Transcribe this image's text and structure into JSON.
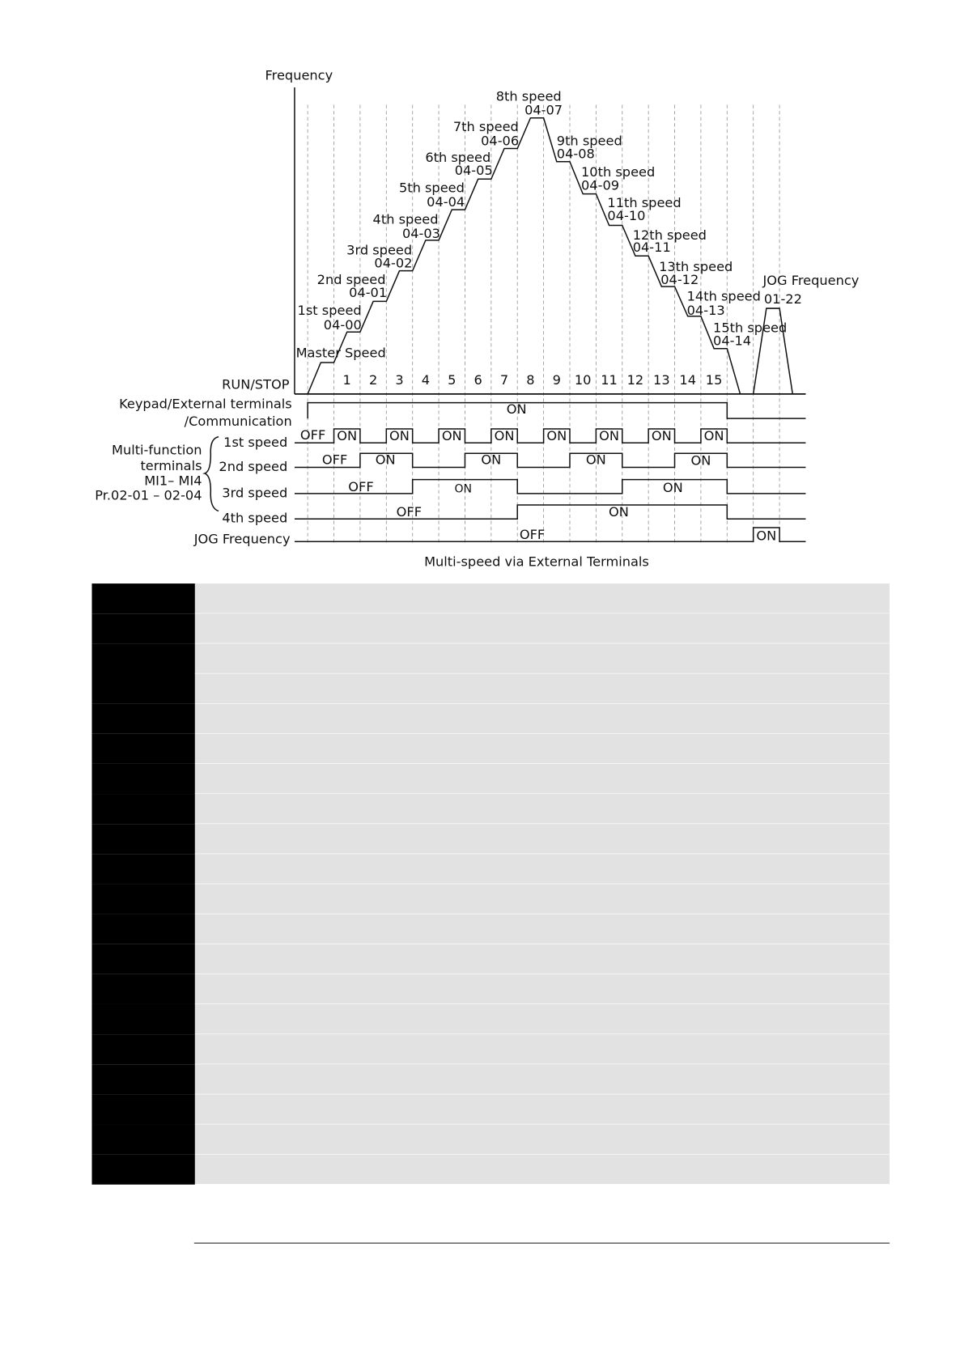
{
  "diagram": {
    "y_axis_label": "Frequency",
    "master_speed": "Master Speed",
    "speeds": [
      {
        "label": "1st speed",
        "param": "04-00"
      },
      {
        "label": "2nd speed",
        "param": "04-01"
      },
      {
        "label": "3rd speed",
        "param": "04-02"
      },
      {
        "label": "4th speed",
        "param": "04-03"
      },
      {
        "label": "5th speed",
        "param": "04-04"
      },
      {
        "label": "6th speed",
        "param": "04-05"
      },
      {
        "label": "7th speed",
        "param": "04-06"
      },
      {
        "label": "8th speed",
        "param": "04-07"
      },
      {
        "label": "9th speed",
        "param": "04-08"
      },
      {
        "label": "10th speed",
        "param": "04-09"
      },
      {
        "label": "11th speed",
        "param": "04-10"
      },
      {
        "label": "12th speed",
        "param": "04-11"
      },
      {
        "label": "13th speed",
        "param": "04-12"
      },
      {
        "label": "14th speed",
        "param": "04-13"
      },
      {
        "label": "15th speed",
        "param": "04-14"
      }
    ],
    "jog": {
      "label": "JOG Frequency",
      "param": "01-22"
    },
    "steps": [
      "1",
      "2",
      "3",
      "4",
      "5",
      "6",
      "7",
      "8",
      "9",
      "10",
      "11",
      "12",
      "13",
      "14",
      "15"
    ],
    "run_stop": "RUN/STOP",
    "keypad": {
      "label": "Keypad/External terminals",
      "label2": "/Communication",
      "state": "ON"
    },
    "multi_function": [
      "Multi-function",
      "terminals",
      "MI1– MI4",
      "Pr.02-01 – 02-04"
    ],
    "terminal_rows": [
      {
        "label": "1st speed",
        "states": [
          "OFF",
          "ON",
          "ON",
          "ON",
          "ON",
          "ON",
          "ON",
          "ON",
          "ON"
        ]
      },
      {
        "label": "2nd speed",
        "states": [
          "OFF",
          "ON",
          "ON",
          "ON",
          "ON"
        ]
      },
      {
        "label": "3rd speed",
        "states": [
          "OFF",
          "ON",
          "ON"
        ]
      },
      {
        "label": "4th speed",
        "states": [
          "OFF",
          "ON"
        ]
      }
    ],
    "jog_row": {
      "label": "JOG Frequency",
      "states": [
        "OFF",
        "ON"
      ]
    },
    "caption": "Multi-speed via External Terminals"
  }
}
